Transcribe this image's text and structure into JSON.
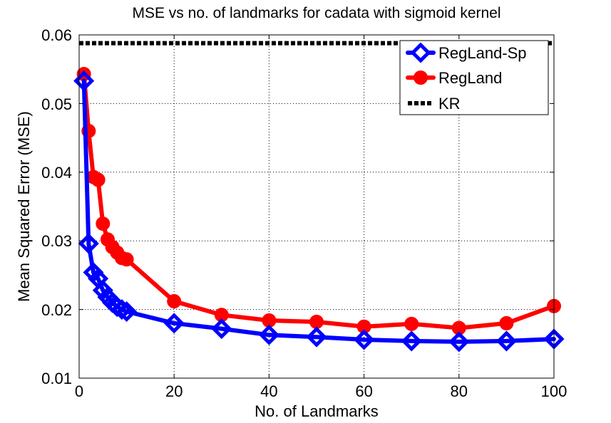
{
  "chart_data": {
    "type": "line",
    "title": "MSE vs no. of landmarks for cadata with sigmoid kernel",
    "xlabel": "No. of Landmarks",
    "ylabel": "Mean Squared Error (MSE)",
    "xlim": [
      0,
      100
    ],
    "ylim": [
      0.01,
      0.06
    ],
    "xticks": [
      0,
      20,
      40,
      60,
      80,
      100
    ],
    "yticks": [
      0.01,
      0.02,
      0.03,
      0.04,
      0.05,
      0.06
    ],
    "xtick_labels": [
      "0",
      "20",
      "40",
      "60",
      "80",
      "100"
    ],
    "ytick_labels": [
      "0.01",
      "0.02",
      "0.03",
      "0.04",
      "0.05",
      "0.06"
    ],
    "grid": true,
    "legend_position": "top-right",
    "series": [
      {
        "name": "RegLand-Sp",
        "color": "#0000ff",
        "marker": "diamond",
        "line_style": "solid",
        "x": [
          1,
          2,
          3,
          4,
          5,
          6,
          7,
          8,
          9,
          10,
          20,
          30,
          40,
          50,
          60,
          70,
          80,
          90,
          100
        ],
        "y": [
          0.0533,
          0.0296,
          0.0254,
          0.0245,
          0.0228,
          0.0218,
          0.021,
          0.0204,
          0.02,
          0.0197,
          0.018,
          0.0172,
          0.0163,
          0.016,
          0.0156,
          0.0154,
          0.0153,
          0.0154,
          0.0157
        ]
      },
      {
        "name": "RegLand",
        "color": "#ff0000",
        "marker": "circle",
        "line_style": "solid",
        "x": [
          1,
          2,
          3,
          4,
          5,
          6,
          7,
          8,
          9,
          10,
          20,
          30,
          40,
          50,
          60,
          70,
          80,
          90,
          100
        ],
        "y": [
          0.0543,
          0.046,
          0.0393,
          0.0389,
          0.0325,
          0.0302,
          0.0291,
          0.0283,
          0.0275,
          0.0273,
          0.0212,
          0.0192,
          0.0184,
          0.0182,
          0.0175,
          0.0179,
          0.0173,
          0.018,
          0.0205
        ]
      },
      {
        "name": "KR",
        "color": "#000000",
        "marker": "none",
        "line_style": "dashed",
        "x": [
          0,
          100
        ],
        "y": [
          0.0588,
          0.0588
        ]
      }
    ]
  }
}
